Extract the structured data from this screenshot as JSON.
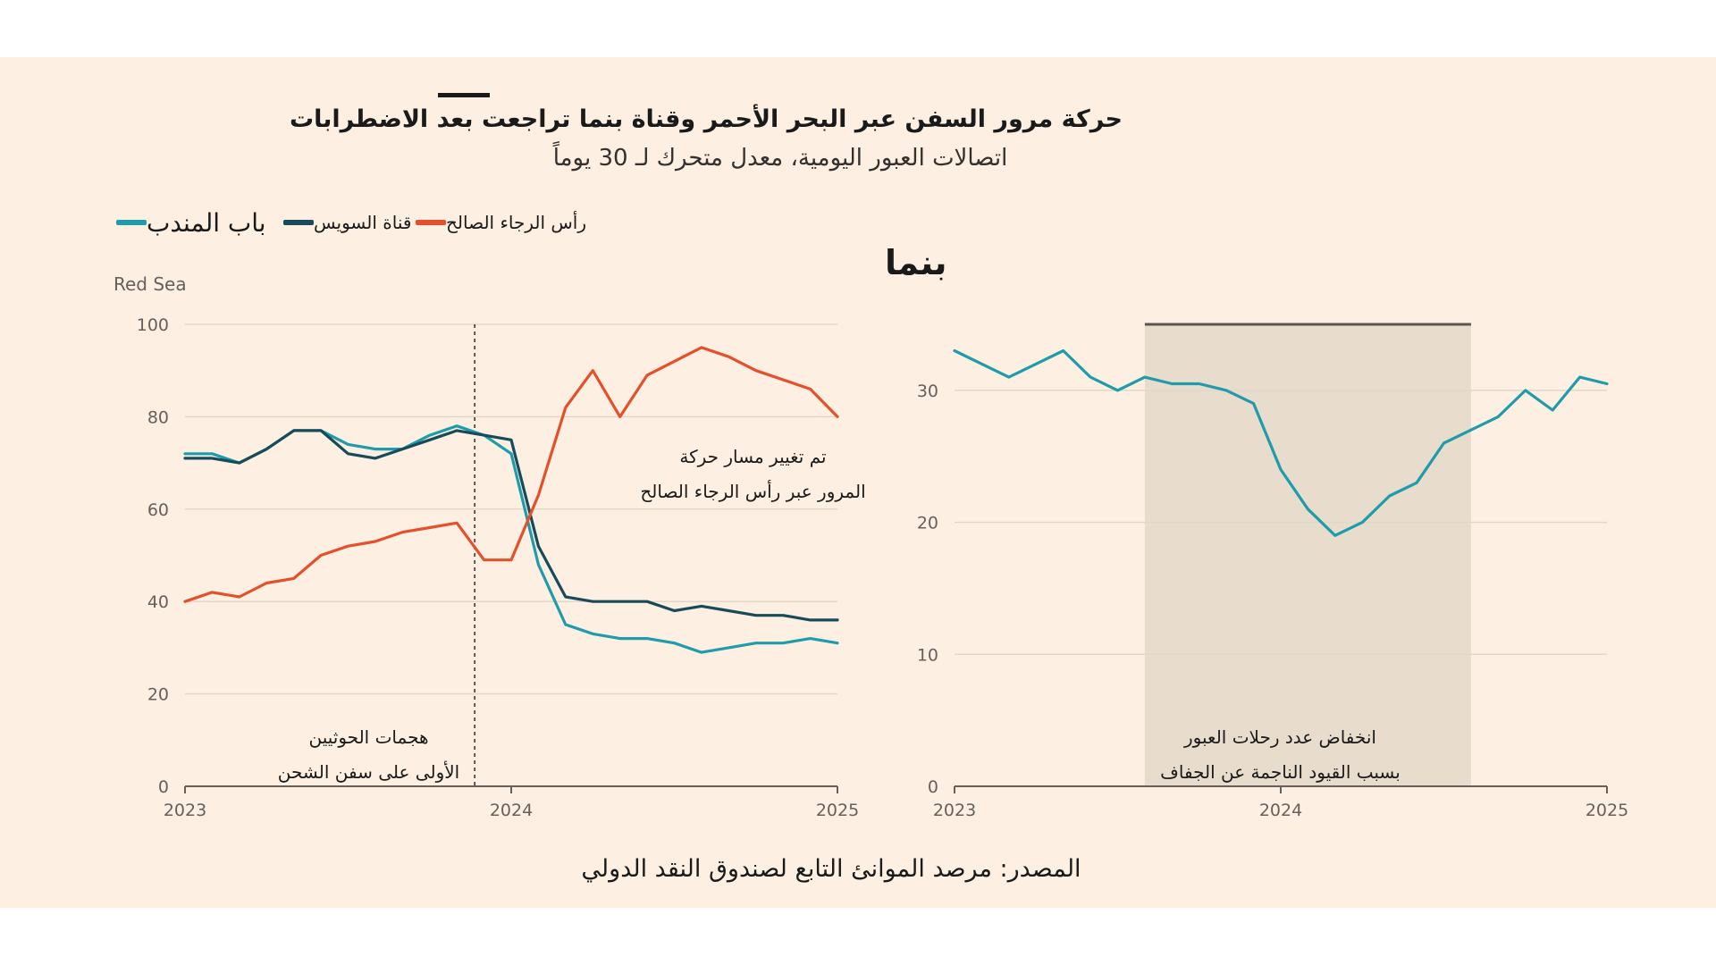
{
  "title": "حركة مرور السفن عبر البحر الأحمر وقناة بنما تراجعت بعد الاضطرابات",
  "subtitle": "اتصالات العبور اليومية، معدل متحرك لـ 30 يوماً",
  "source": "المصدر: مرصد الموانئ التابع لصندوق النقد الدولي",
  "legend": [
    {
      "label": "باب المندب",
      "color": "#1f9bab"
    },
    {
      "label": "قناة السويس",
      "color": "#184b5a"
    },
    {
      "label": "رأس الرجاء الصالح",
      "color": "#e4502b"
    }
  ],
  "chart_data": [
    {
      "type": "line",
      "panel_label": "Red Sea",
      "x_ticks": [
        "2023",
        "2024",
        "2025"
      ],
      "xlim": [
        "2023-01",
        "2025-01"
      ],
      "ylim": [
        0,
        100
      ],
      "y_ticks": [
        0,
        20,
        40,
        60,
        80,
        100
      ],
      "grid": true,
      "x": [
        "2023-01",
        "2023-02",
        "2023-03",
        "2023-04",
        "2023-05",
        "2023-06",
        "2023-07",
        "2023-08",
        "2023-09",
        "2023-10",
        "2023-11",
        "2023-12",
        "2024-01",
        "2024-02",
        "2024-03",
        "2024-04",
        "2024-05",
        "2024-06",
        "2024-07",
        "2024-08",
        "2024-09",
        "2024-10",
        "2024-11",
        "2024-12",
        "2025-01"
      ],
      "series": [
        {
          "name": "باب المندب",
          "color": "#1f9bab",
          "values": [
            72,
            72,
            70,
            73,
            77,
            77,
            74,
            73,
            73,
            76,
            78,
            76,
            72,
            48,
            35,
            33,
            32,
            32,
            31,
            29,
            30,
            31,
            31,
            32,
            31
          ]
        },
        {
          "name": "قناة السويس",
          "color": "#184b5a",
          "values": [
            71,
            71,
            70,
            73,
            77,
            77,
            72,
            71,
            73,
            75,
            77,
            76,
            75,
            52,
            41,
            40,
            40,
            40,
            38,
            39,
            38,
            37,
            37,
            36,
            36
          ]
        },
        {
          "name": "رأس الرجاء الصالح",
          "color": "#e4502b",
          "values": [
            40,
            42,
            41,
            44,
            45,
            50,
            52,
            53,
            55,
            56,
            57,
            49,
            49,
            63,
            82,
            90,
            80,
            89,
            92,
            95,
            93,
            90,
            88,
            86,
            80
          ]
        }
      ],
      "annotations": [
        {
          "lines": [
            "هجمات الحوثيين",
            "الأولى على سفن الشحن"
          ]
        },
        {
          "lines": [
            "تم تغيير مسار حركة",
            "المرور عبر رأس الرجاء الصالح"
          ]
        }
      ],
      "event_line_x": "2023-11"
    },
    {
      "type": "line",
      "panel_label": "بنما",
      "x_ticks": [
        "2023",
        "2024",
        "2025"
      ],
      "xlim": [
        "2023-01",
        "2025-01"
      ],
      "ylim": [
        0,
        35
      ],
      "y_ticks": [
        0,
        10,
        20,
        30
      ],
      "grid": true,
      "x": [
        "2023-01",
        "2023-02",
        "2023-03",
        "2023-04",
        "2023-05",
        "2023-06",
        "2023-07",
        "2023-08",
        "2023-09",
        "2023-10",
        "2023-11",
        "2023-12",
        "2024-01",
        "2024-02",
        "2024-03",
        "2024-04",
        "2024-05",
        "2024-06",
        "2024-07",
        "2024-08",
        "2024-09",
        "2024-10",
        "2024-11",
        "2024-12",
        "2025-01"
      ],
      "series": [
        {
          "name": "بنما",
          "color": "#1f9bab",
          "values": [
            33,
            32,
            31,
            32,
            33,
            31,
            30,
            31,
            30.5,
            30.5,
            30,
            29,
            24,
            21,
            19,
            20,
            22,
            23,
            26,
            27,
            28,
            30,
            28.5,
            31,
            30.5
          ]
        }
      ],
      "shaded_range": [
        "2023-08",
        "2024-08"
      ],
      "annotations": [
        {
          "lines": [
            "انخفاض عدد رحلات العبور",
            "بسبب القيود الناجمة عن الجفاف"
          ]
        }
      ]
    }
  ]
}
